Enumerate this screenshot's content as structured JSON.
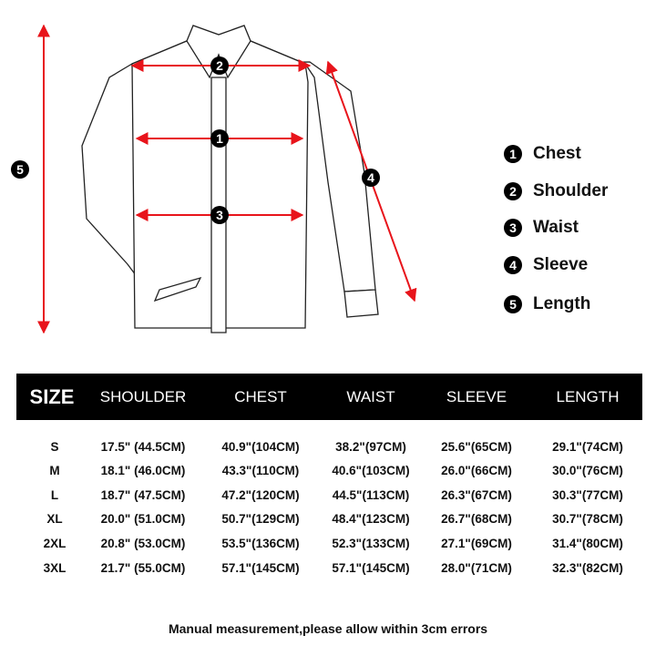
{
  "legend": [
    {
      "num": "1",
      "label": "Chest"
    },
    {
      "num": "2",
      "label": "Shoulder"
    },
    {
      "num": "3",
      "label": "Waist"
    },
    {
      "num": "4",
      "label": "Sleeve"
    },
    {
      "num": "5",
      "label": "Length"
    }
  ],
  "colors": {
    "arrow": "#e8141b",
    "header_bg": "#000000"
  },
  "table": {
    "headers": [
      "SIZE",
      "SHOULDER",
      "CHEST",
      "WAIST",
      "SLEEVE",
      "LENGTH"
    ],
    "rows": [
      [
        "S",
        "17.5\" (44.5CM)",
        "40.9\"(104CM)",
        "38.2\"(97CM)",
        "25.6\"(65CM)",
        "29.1\"(74CM)"
      ],
      [
        "M",
        "18.1\" (46.0CM)",
        "43.3\"(110CM)",
        "40.6\"(103CM)",
        "26.0\"(66CM)",
        "30.0\"(76CM)"
      ],
      [
        "L",
        "18.7\" (47.5CM)",
        "47.2\"(120CM)",
        "44.5\"(113CM)",
        "26.3\"(67CM)",
        "30.3\"(77CM)"
      ],
      [
        "XL",
        "20.0\" (51.0CM)",
        "50.7\"(129CM)",
        "48.4\"(123CM)",
        "26.7\"(68CM)",
        "30.7\"(78CM)"
      ],
      [
        "2XL",
        "20.8\" (53.0CM)",
        "53.5\"(136CM)",
        "52.3\"(133CM)",
        "27.1\"(69CM)",
        "31.4\"(80CM)"
      ],
      [
        "3XL",
        "21.7\" (55.0CM)",
        "57.1\"(145CM)",
        "57.1\"(145CM)",
        "28.0\"(71CM)",
        "32.3\"(82CM)"
      ]
    ]
  },
  "footer": "Manual measurement,please allow within 3cm errors"
}
